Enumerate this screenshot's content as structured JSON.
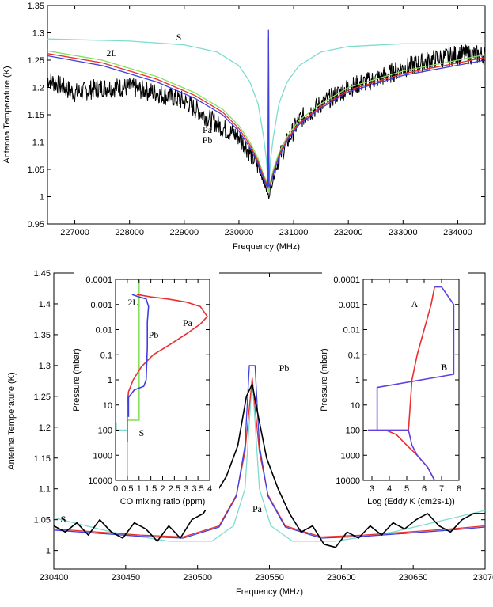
{
  "chart_data": [
    {
      "type": "line",
      "xlabel": "Frequency (MHz)",
      "ylabel": "Antenna Temperature (K)",
      "xlim": [
        226500,
        234500
      ],
      "ylim": [
        0.95,
        1.35
      ],
      "xticks": [
        "227000",
        "228000",
        "229000",
        "230000",
        "231000",
        "232000",
        "233000",
        "234000"
      ],
      "yticks": [
        "0.95",
        "1",
        "1.05",
        "1.1",
        "1.15",
        "1.2",
        "1.25",
        "1.3",
        "1.35"
      ],
      "line_center": 230540,
      "series": [
        {
          "name": "S",
          "color": "#7fdcd0",
          "x": [
            226500,
            228000,
            229000,
            229600,
            230000,
            230200,
            230350,
            230450,
            230500,
            230540,
            230580,
            230630,
            230730,
            230880,
            231100,
            231500,
            232000,
            233000,
            234500
          ],
          "y": [
            1.289,
            1.285,
            1.278,
            1.265,
            1.24,
            1.21,
            1.17,
            1.11,
            1.07,
            1.01,
            1.07,
            1.11,
            1.17,
            1.21,
            1.24,
            1.265,
            1.275,
            1.28,
            1.28
          ]
        },
        {
          "name": "2L",
          "color": "#88e060",
          "x": [
            226500,
            227500,
            228500,
            229200,
            229700,
            230000,
            230200,
            230350,
            230450,
            230500,
            230540,
            230580,
            230630,
            230730,
            230880,
            231100,
            231500,
            232000,
            233000,
            234500
          ],
          "y": [
            1.267,
            1.25,
            1.22,
            1.19,
            1.16,
            1.13,
            1.1,
            1.07,
            1.04,
            1.03,
            1.01,
            1.03,
            1.05,
            1.08,
            1.11,
            1.14,
            1.17,
            1.2,
            1.23,
            1.26
          ]
        },
        {
          "name": "Pa",
          "color": "#e83030",
          "x": [
            226500,
            227500,
            228500,
            229200,
            229700,
            230000,
            230200,
            230350,
            230450,
            230500,
            230530,
            230540,
            230550,
            230580,
            230630,
            230730,
            230880,
            231100,
            231500,
            232000,
            233000,
            234500
          ],
          "y": [
            1.262,
            1.245,
            1.215,
            1.185,
            1.155,
            1.125,
            1.095,
            1.065,
            1.037,
            1.025,
            1.02,
            1.29,
            1.02,
            1.025,
            1.045,
            1.075,
            1.105,
            1.135,
            1.165,
            1.195,
            1.225,
            1.255
          ]
        },
        {
          "name": "Pb",
          "color": "#4040e0",
          "x": [
            226500,
            227500,
            228500,
            229200,
            229700,
            230000,
            230200,
            230350,
            230450,
            230500,
            230530,
            230540,
            230550,
            230580,
            230630,
            230730,
            230880,
            231100,
            231500,
            232000,
            233000,
            234500
          ],
          "y": [
            1.258,
            1.24,
            1.21,
            1.18,
            1.15,
            1.12,
            1.09,
            1.06,
            1.033,
            1.022,
            1.018,
            1.305,
            1.018,
            1.022,
            1.042,
            1.072,
            1.102,
            1.132,
            1.162,
            1.192,
            1.222,
            1.25
          ]
        },
        {
          "name": "",
          "color": "#000000",
          "x": [
            226500,
            227000,
            227500,
            228000,
            228500,
            229000,
            229500,
            229800,
            230000,
            230200,
            230350,
            230450,
            230540,
            230630,
            230730,
            230880,
            231100,
            231500,
            232000,
            232500,
            233000,
            233500,
            234000,
            234500
          ],
          "y": [
            1.215,
            1.19,
            1.2,
            1.2,
            1.19,
            1.175,
            1.14,
            1.12,
            1.11,
            1.08,
            1.055,
            1.03,
            1.0,
            1.035,
            1.07,
            1.1,
            1.14,
            1.17,
            1.2,
            1.215,
            1.235,
            1.25,
            1.26,
            1.26
          ],
          "noise": 0.018
        }
      ],
      "annotations": [
        "S",
        "2L",
        "Pa",
        "Pb"
      ]
    },
    {
      "type": "line",
      "xlabel": "Frequency (MHz)",
      "ylabel": "Antenna Temperature (K)",
      "xlim": [
        230400,
        230700
      ],
      "ylim": [
        0.97,
        1.45
      ],
      "xticks": [
        "230400",
        "230450",
        "230500",
        "230550",
        "230600",
        "230650",
        "23070"
      ],
      "yticks": [
        "1",
        "1.05",
        "1.1",
        "1.15",
        "1.2",
        "1.25",
        "1.3",
        "1.35",
        "1.4",
        "1.45"
      ],
      "series": [
        {
          "name": "S",
          "color": "#7fdcd0",
          "x": [
            230400,
            230440,
            230480,
            230510,
            230525,
            230533,
            230538,
            230543,
            230551,
            230566,
            230596,
            230636,
            230700
          ],
          "y": [
            1.053,
            1.03,
            1.015,
            1.015,
            1.04,
            1.1,
            1.28,
            1.1,
            1.04,
            1.015,
            1.015,
            1.03,
            1.065
          ]
        },
        {
          "name": "Pa",
          "color": "#e83030",
          "x": [
            230400,
            230460,
            230490,
            230515,
            230527,
            230533,
            230538,
            230543,
            230549,
            230561,
            230586,
            230616,
            230676,
            230700
          ],
          "y": [
            1.035,
            1.025,
            1.022,
            1.04,
            1.09,
            1.16,
            1.28,
            1.16,
            1.09,
            1.04,
            1.022,
            1.025,
            1.035,
            1.04
          ]
        },
        {
          "name": "Pb",
          "color": "#4040e0",
          "x": [
            230400,
            230460,
            230490,
            230515,
            230527,
            230533,
            230536,
            230538,
            230540,
            230543,
            230549,
            230561,
            230586,
            230616,
            230676,
            230700
          ],
          "y": [
            1.033,
            1.023,
            1.02,
            1.038,
            1.088,
            1.17,
            1.3,
            1.3,
            1.3,
            1.17,
            1.088,
            1.038,
            1.02,
            1.023,
            1.033,
            1.038
          ]
        },
        {
          "name": "",
          "color": "#000000",
          "x": [
            230400,
            230408,
            230416,
            230424,
            230432,
            230440,
            230448,
            230456,
            230464,
            230472,
            230480,
            230488,
            230496,
            230504,
            230512,
            230520,
            230528,
            230534,
            230538,
            230542,
            230548,
            230556,
            230564,
            230572,
            230580,
            230588,
            230596,
            230604,
            230612,
            230620,
            230628,
            230636,
            230644,
            230652,
            230660,
            230668,
            230676,
            230684,
            230692,
            230700
          ],
          "y": [
            1.04,
            1.03,
            1.045,
            1.025,
            1.05,
            1.03,
            1.02,
            1.045,
            1.035,
            1.015,
            1.04,
            1.02,
            1.05,
            1.06,
            1.09,
            1.12,
            1.17,
            1.25,
            1.27,
            1.22,
            1.15,
            1.1,
            1.06,
            1.03,
            1.04,
            1.01,
            1.005,
            1.03,
            1.02,
            1.04,
            1.025,
            1.045,
            1.035,
            1.05,
            1.06,
            1.04,
            1.03,
            1.05,
            1.06,
            1.06
          ]
        }
      ],
      "annotations": [
        "S",
        "Pa",
        "Pb"
      ]
    },
    {
      "type": "line",
      "xlabel": "CO mixing ratio (ppm)",
      "ylabel": "Pressure (mbar)",
      "xlim": [
        0,
        4
      ],
      "ylim": [
        0.0001,
        10000
      ],
      "yscale": "log",
      "xticks": [
        "0",
        "0.5",
        "1",
        "1.5",
        "2",
        "2.5",
        "3",
        "3.5",
        "4"
      ],
      "yticks": [
        "0.0001",
        "0.001",
        "0.01",
        "0.1",
        "1",
        "10",
        "100",
        "1000",
        "10000"
      ],
      "series": [
        {
          "name": "2L",
          "color": "#88e060",
          "x": [
            0.5,
            0.5,
            1.0,
            1.0
          ],
          "y": [
            10000,
            40,
            40,
            0.0001
          ]
        },
        {
          "name": "S",
          "color": "#7fdcd0",
          "x": [
            0.5,
            0.5,
            0.03,
            0.03
          ],
          "y": [
            10000,
            100,
            100,
            50
          ]
        },
        {
          "name": "Pa",
          "color": "#e83030",
          "x": [
            0.5,
            0.5,
            0.55,
            0.75,
            1.1,
            1.6,
            2.3,
            3.0,
            3.6,
            3.9,
            3.6,
            3.0,
            2.2,
            1.5,
            0.9
          ],
          "y": [
            300,
            10,
            3,
            1,
            0.3,
            0.1,
            0.04,
            0.015,
            0.006,
            0.003,
            0.0012,
            0.0008,
            0.0006,
            0.0005,
            0.0004
          ]
        },
        {
          "name": "Pb",
          "color": "#4040e0",
          "x": [
            0.55,
            0.55,
            0.8,
            1.2,
            1.3,
            1.35,
            1.35,
            1.4,
            1.3,
            1.0,
            0.7
          ],
          "y": [
            30,
            5,
            2.5,
            1.8,
            1,
            0.05,
            0.005,
            0.0012,
            0.0006,
            0.0005,
            0.0004
          ]
        }
      ],
      "annotations": [
        "2L",
        "Pa",
        "Pb",
        "S"
      ]
    },
    {
      "type": "line",
      "xlabel": "Log (Eddy K (cm2s-1))",
      "ylabel": "Pressure (mbar)",
      "xlim": [
        2.5,
        8
      ],
      "ylim": [
        0.0001,
        10000
      ],
      "yscale": "log",
      "xticks": [
        "3",
        "4",
        "5",
        "6",
        "7",
        "8"
      ],
      "yticks": [
        "0.0001",
        "0.001",
        "0.01",
        "0.1",
        "1",
        "10",
        "100",
        "1000",
        "10000"
      ],
      "series": [
        {
          "name": "A",
          "color": "#e83030",
          "x": [
            6.6,
            6.2,
            5.6,
            5.0,
            4.4,
            3.8,
            3.2,
            2.8,
            5.1,
            5.3,
            5.6,
            6.0,
            6.4,
            6.6
          ],
          "y": [
            10000,
            3000,
            1000,
            400,
            150,
            100,
            100,
            100,
            100,
            1,
            0.1,
            0.01,
            0.001,
            0.0002
          ]
        },
        {
          "name": "B",
          "color": "#6040e0",
          "x": [
            6.6,
            6.2,
            5.6,
            5.3,
            5.1,
            2.8,
            3.3,
            3.3,
            7.7,
            7.7,
            7.0,
            6.6
          ],
          "y": [
            10000,
            3000,
            1000,
            400,
            100,
            100,
            100,
            2,
            0.6,
            0.001,
            0.0002,
            0.0002
          ]
        }
      ],
      "annotations": [
        "A",
        "B"
      ]
    }
  ]
}
